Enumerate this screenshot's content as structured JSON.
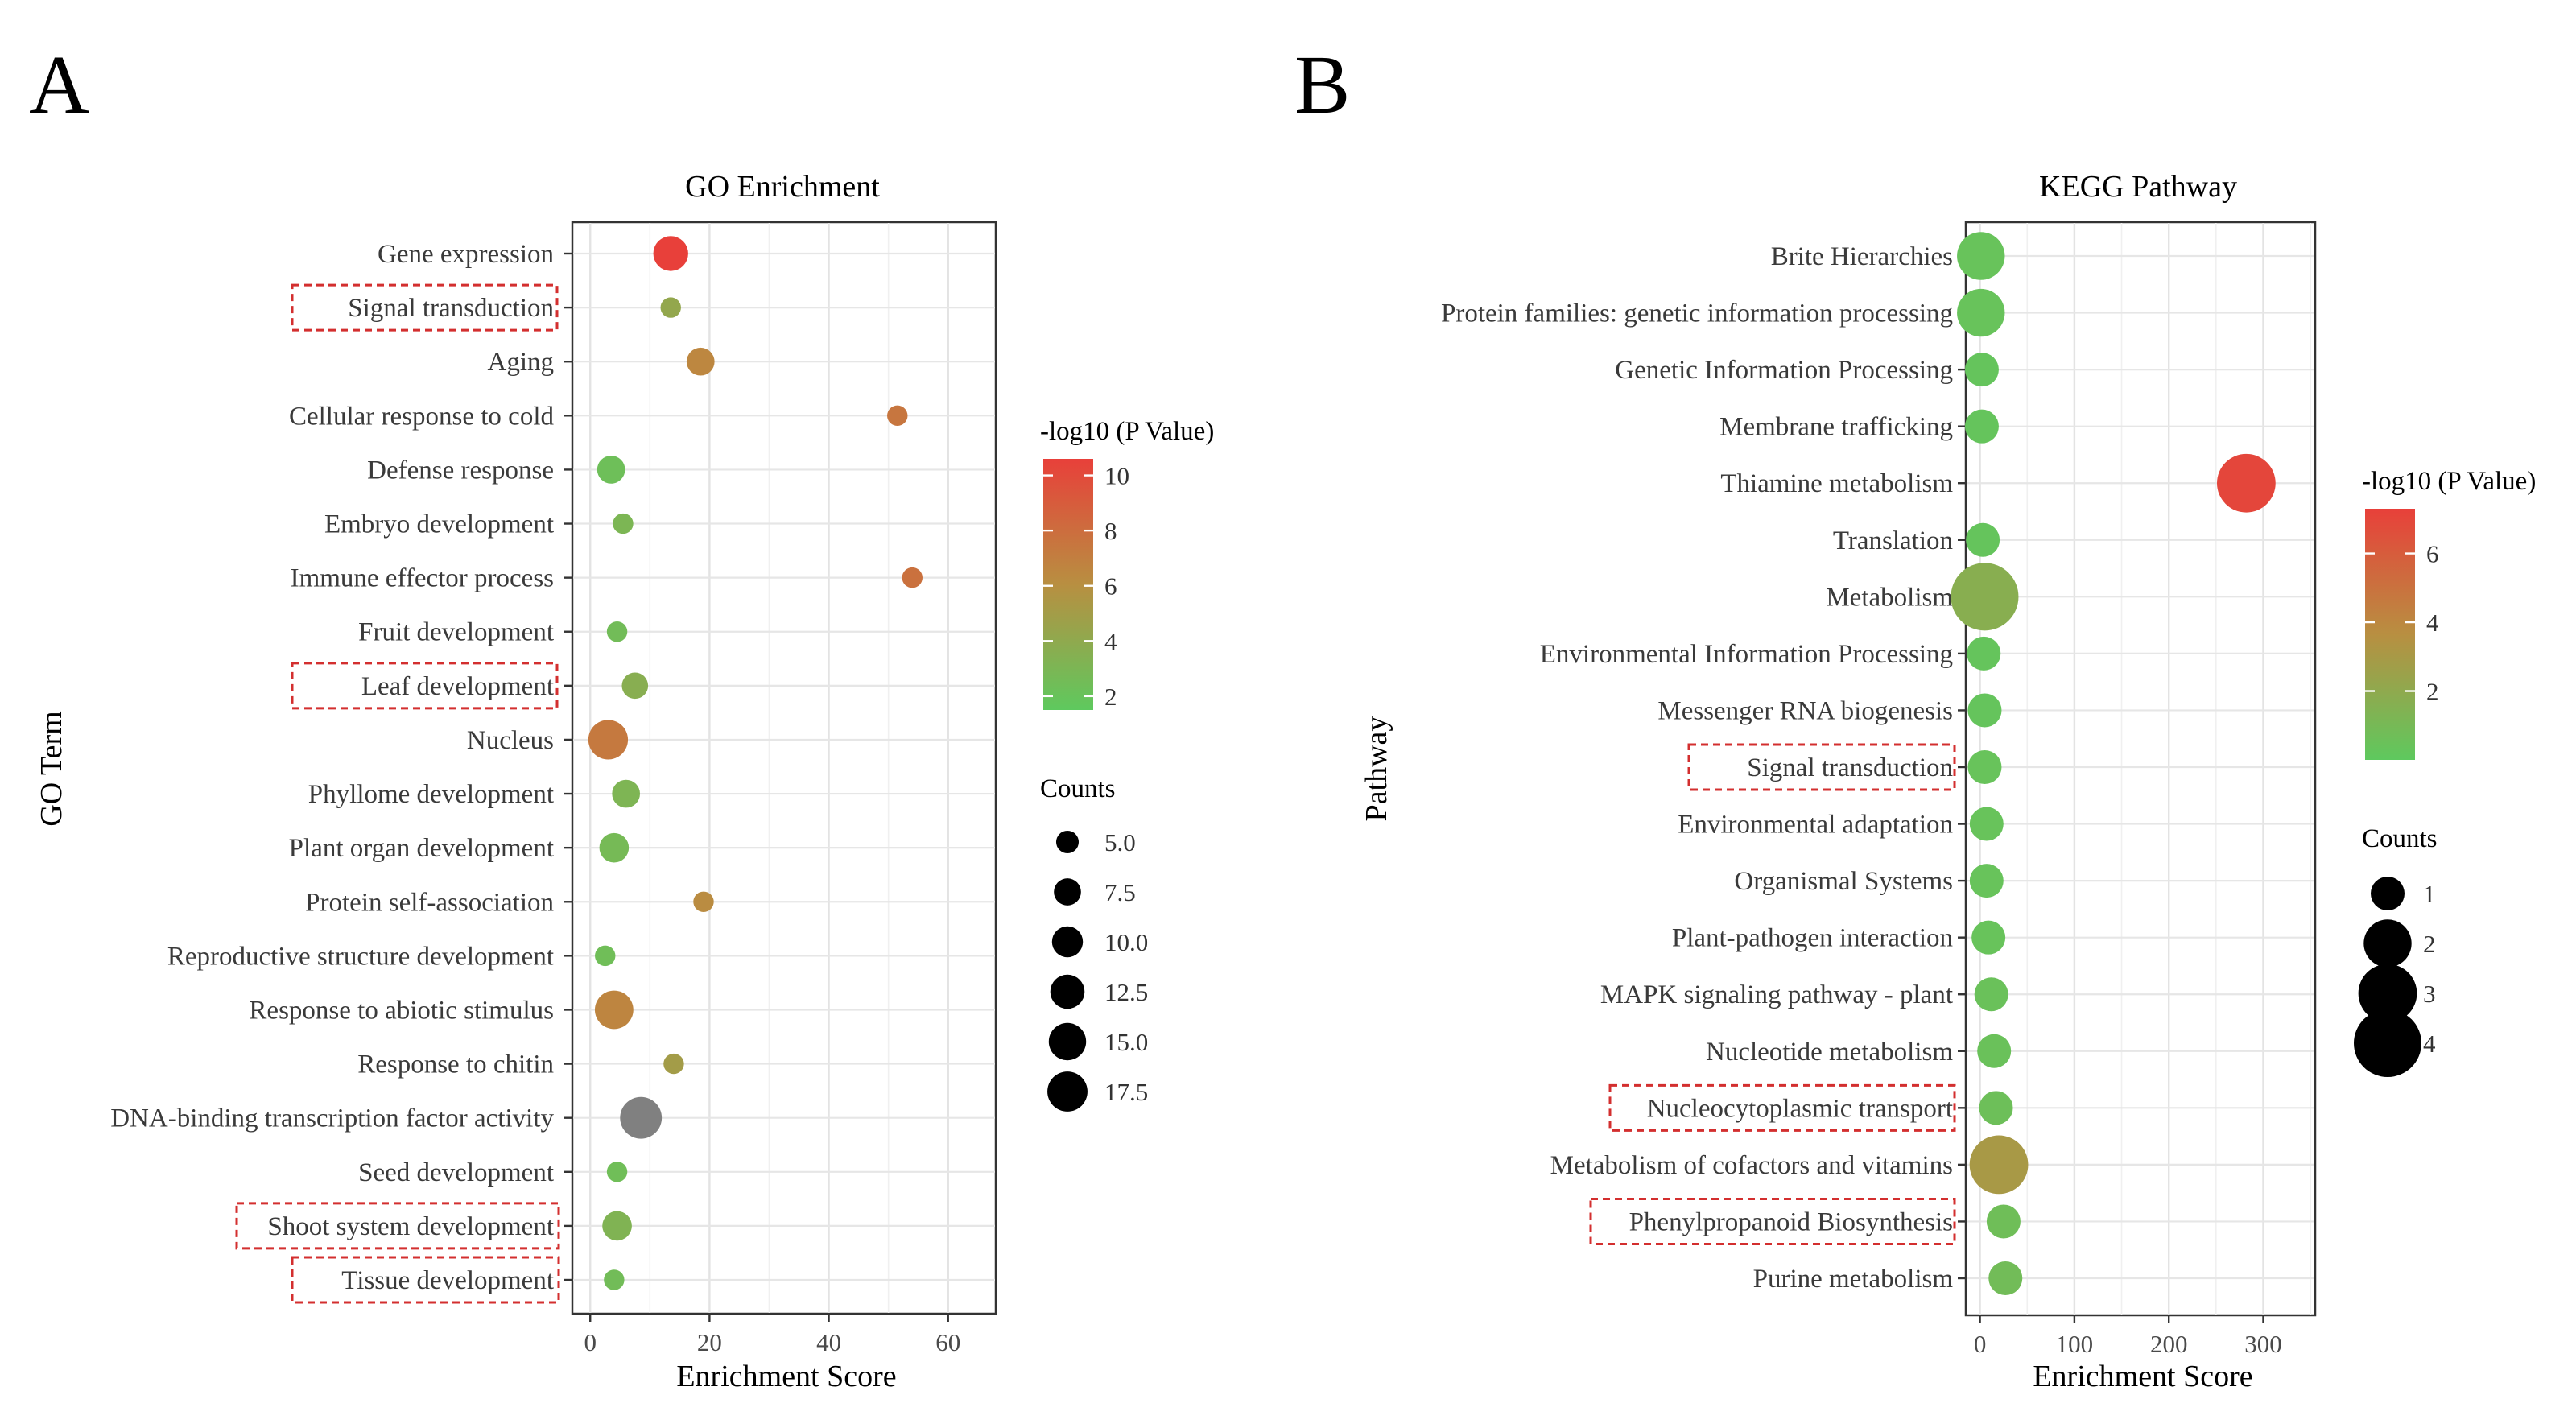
{
  "panels": {
    "left": "A",
    "right": "B"
  },
  "chart_data": [
    {
      "type": "scatter",
      "title": "GO Enrichment",
      "xlabel": "Enrichment Score",
      "ylabel": "GO Term",
      "xlim": [
        -3,
        68
      ],
      "xticks": [
        0,
        20,
        40,
        60
      ],
      "categories": [
        "Gene expression",
        "Signal transduction",
        "Aging",
        "Cellular response to cold",
        "Defense response",
        "Embryo development",
        "Immune effector process",
        "Fruit development",
        "Leaf development",
        "Nucleus",
        "Phyllome development",
        "Plant organ development",
        "Protein self-association",
        "Reproductive structure development",
        "Response to abiotic stimulus",
        "Response to chitin",
        "DNA-binding transcription factor activity",
        "Seed development",
        "Shoot system development",
        "Tissue development"
      ],
      "x": [
        13.5,
        13.5,
        18.5,
        51.5,
        3.5,
        5.5,
        54.0,
        4.5,
        7.5,
        3.0,
        6.0,
        4.0,
        19.0,
        2.5,
        4.0,
        14.0,
        8.5,
        4.5,
        4.5,
        4.0
      ],
      "counts": [
        13,
        4,
        8,
        4,
        8,
        4,
        4,
        4,
        7,
        17,
        8,
        9,
        4,
        4,
        16,
        4,
        19,
        4,
        9,
        4
      ],
      "neg_log10_p": [
        11,
        4.2,
        6.5,
        7.5,
        2.3,
        3.0,
        7.8,
        2.5,
        3.6,
        7.3,
        3.1,
        2.7,
        6.2,
        2.4,
        6.6,
        5.0,
        null,
        2.4,
        3.2,
        2.5
      ],
      "na_color": "#808080",
      "highlighted": [
        "Signal transduction",
        "Leaf development",
        "Shoot system development",
        "Tissue development"
      ],
      "color_legend": {
        "title": "-log10 (P Value)",
        "min": 1.5,
        "max": 10.6,
        "ticks": [
          2,
          4,
          6,
          8,
          10
        ],
        "low_color": "#5ec95e",
        "mid_color": "#b88f41",
        "high_color": "#e8403a"
      },
      "size_legend": {
        "title": "Counts",
        "values": [
          "5.0",
          "7.5",
          "10.0",
          "12.5",
          "15.0",
          "17.5"
        ]
      }
    },
    {
      "type": "scatter",
      "title": "KEGG Pathway",
      "xlabel": "Enrichment Score",
      "ylabel": "Pathway",
      "xlim": [
        -15,
        355
      ],
      "xticks": [
        0,
        100,
        200,
        300
      ],
      "categories": [
        "Brite Hierarchies",
        "Protein families: genetic information processing",
        "Genetic Information Processing",
        "Membrane trafficking",
        "Thiamine metabolism",
        "Translation",
        "Metabolism",
        "Environmental Information Processing",
        "Messenger RNA biogenesis",
        "Signal transduction",
        "Environmental adaptation",
        "Organismal Systems",
        "Plant-pathogen interaction",
        "MAPK signaling pathway - plant",
        "Nucleotide metabolism",
        "Nucleocytoplasmic transport",
        "Metabolism of cofactors and vitamins",
        "Phenylpropanoid Biosynthesis",
        "Purine metabolism"
      ],
      "x": [
        1,
        1,
        2,
        2,
        282,
        3,
        5,
        4,
        5,
        5,
        7,
        7,
        9,
        12,
        15,
        17,
        20,
        25,
        27
      ],
      "counts": [
        2,
        2,
        1,
        1,
        3,
        1,
        4,
        1,
        1,
        1,
        1,
        1,
        1,
        1,
        1,
        1,
        3,
        1,
        1
      ],
      "neg_log10_p": [
        0.4,
        0.4,
        0.3,
        0.3,
        7.0,
        0.3,
        1.7,
        0.3,
        0.3,
        0.4,
        0.4,
        0.4,
        0.4,
        0.5,
        0.5,
        0.6,
        3.0,
        0.7,
        0.8
      ],
      "highlighted": [
        "Signal transduction",
        "Nucleocytoplasmic transport",
        "Phenylpropanoid Biosynthesis"
      ],
      "color_legend": {
        "title": "-log10 (P Value)",
        "min": 0,
        "max": 7.3,
        "ticks": [
          2,
          4,
          6
        ],
        "low_color": "#5ec95e",
        "mid_color": "#b88f41",
        "high_color": "#e8403a"
      },
      "size_legend": {
        "title": "Counts",
        "values": [
          "1",
          "2",
          "3",
          "4"
        ]
      }
    }
  ]
}
